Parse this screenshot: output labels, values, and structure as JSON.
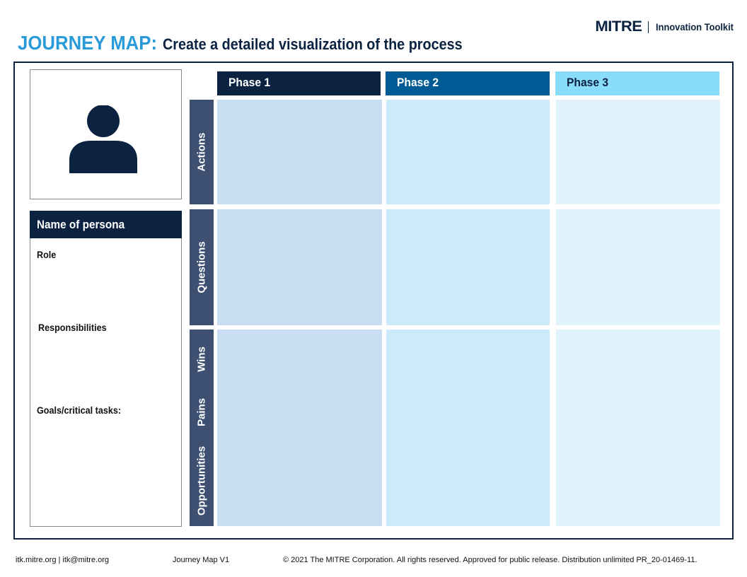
{
  "header": {
    "brand_logo": "MITRE",
    "brand_name": "Innovation Toolkit",
    "title_strong": "JOURNEY MAP:",
    "title_sub": "Create a detailed visualization of the process"
  },
  "persona": {
    "avatar_icon": "person-icon",
    "name_label": "Name of persona",
    "fields": [
      "Role",
      "Responsibilities",
      "Goals/critical  tasks:"
    ]
  },
  "phases": [
    "Phase 1",
    "Phase 2",
    "Phase 3"
  ],
  "rows": {
    "actions": "Actions",
    "questions": "Questions",
    "wins": "Wins",
    "pains": "Pains",
    "opportunities": "Opportunities"
  },
  "colors": {
    "navy": "#0b2240",
    "blue": "#005b94",
    "light_blue": "#8adcfb",
    "accent": "#2a9ad8"
  },
  "footer": {
    "contact": "itk.mitre.org | itk@mitre.org",
    "version": "Journey Map V1",
    "copyright": "© 2021 The MITRE Corporation. All rights reserved. Approved for public release. Distribution unlimited PR_20-01469-11."
  }
}
